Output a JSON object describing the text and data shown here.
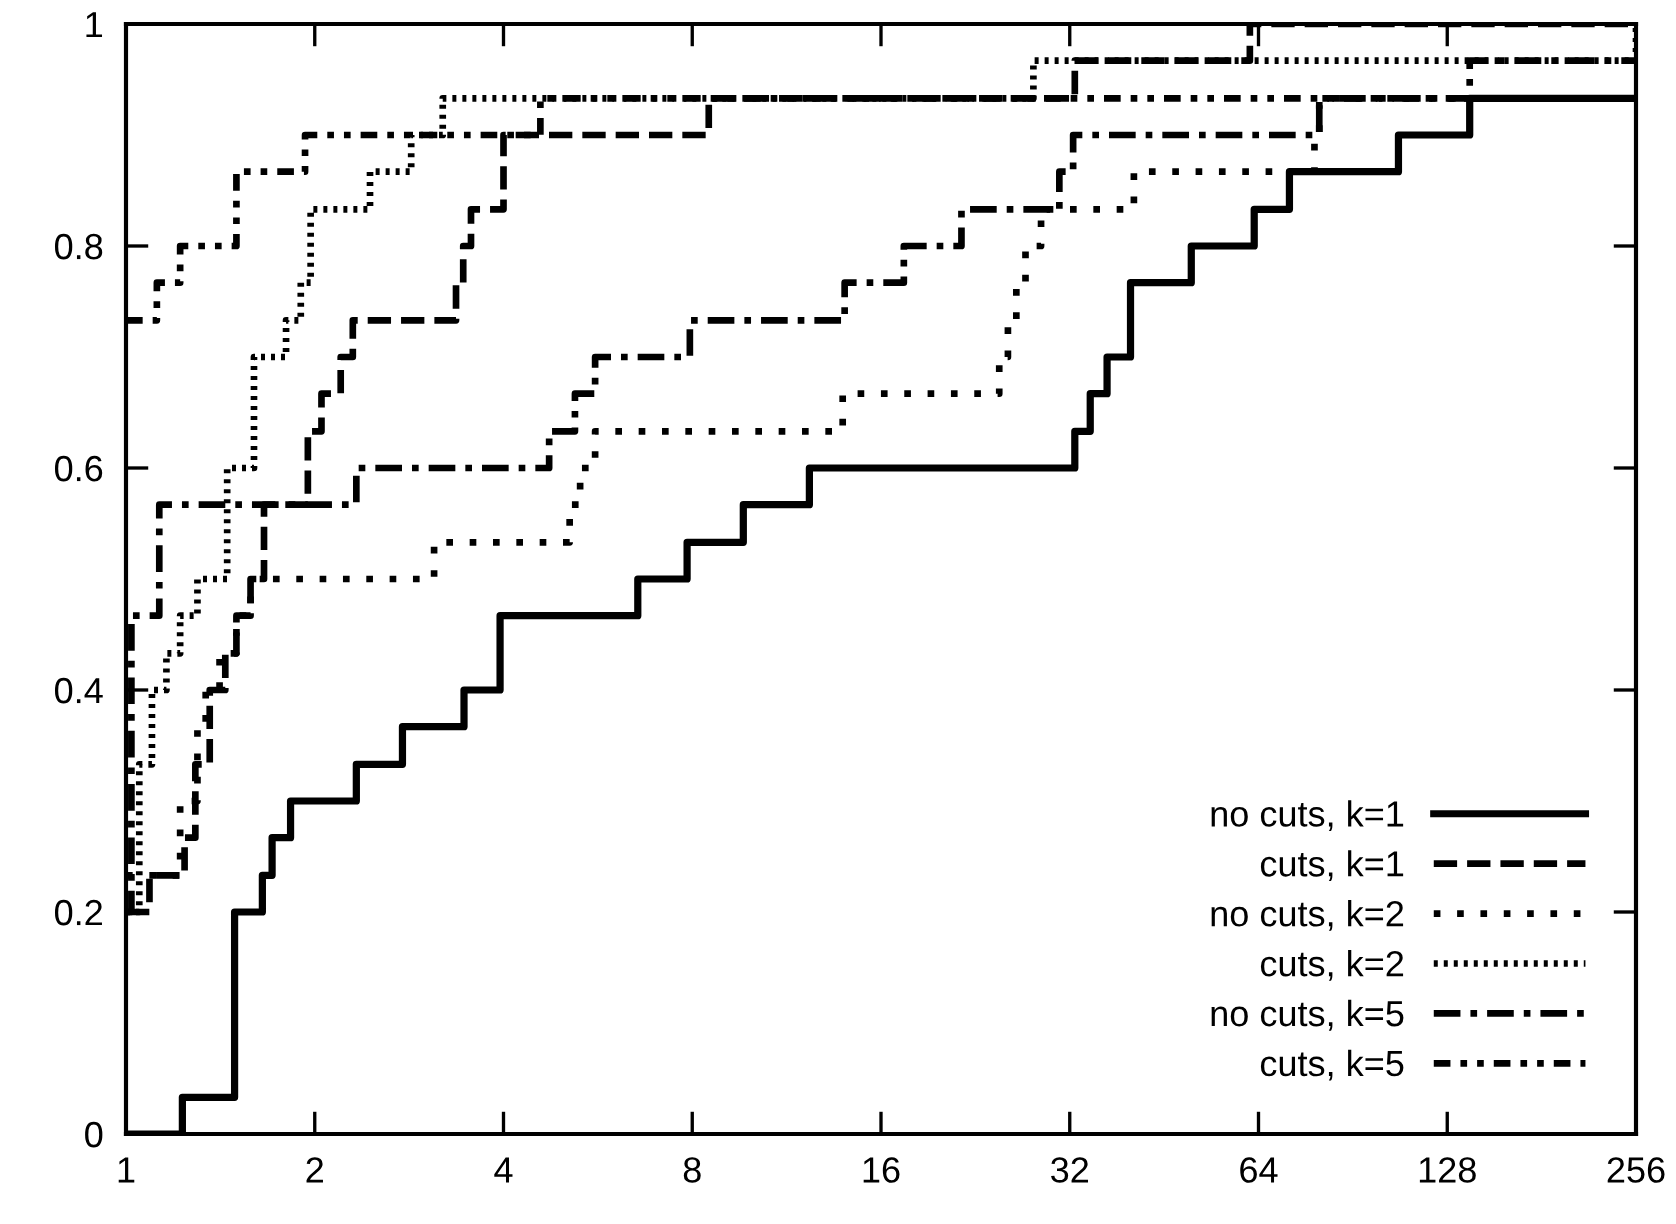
{
  "chart_data": {
    "type": "step",
    "xlim": [
      1,
      256
    ],
    "ylim": [
      0,
      1
    ],
    "log": "x",
    "xticks": [
      1,
      2,
      4,
      8,
      16,
      32,
      64,
      128,
      256
    ],
    "yticks": [
      0,
      0.2,
      0.4,
      0.6,
      0.8,
      1
    ],
    "grid": false,
    "legend": "bottom right",
    "series": [
      {
        "name": "no cuts, k=1",
        "color": "#000000",
        "line_style": "solid",
        "x": [
          1,
          1.23,
          1.49,
          1.65,
          1.71,
          1.83,
          2.33,
          2.76,
          3.46,
          3.95,
          6.55,
          7.85,
          9.65,
          12.3,
          32.6,
          34.5,
          36.7,
          40,
          50,
          63,
          71.7,
          107,
          139,
          256
        ],
        "values": [
          0,
          0.033,
          0.2,
          0.233,
          0.267,
          0.3,
          0.333,
          0.367,
          0.4,
          0.467,
          0.5,
          0.533,
          0.567,
          0.6,
          0.633,
          0.667,
          0.7,
          0.767,
          0.8,
          0.833,
          0.867,
          0.9,
          0.933,
          0.933
        ]
      },
      {
        "name": "cuts, k=1",
        "color": "#000000",
        "line_style": "dashed",
        "x": [
          1,
          1.09,
          1.24,
          1.29,
          1.36,
          1.44,
          1.5,
          1.58,
          1.66,
          1.95,
          2.05,
          2.2,
          2.3,
          3.36,
          3.45,
          3.55,
          4.0,
          8.5,
          32.6,
          62,
          256
        ],
        "values": [
          0.2,
          0.233,
          0.267,
          0.333,
          0.4,
          0.433,
          0.467,
          0.5,
          0.567,
          0.633,
          0.667,
          0.7,
          0.733,
          0.767,
          0.8,
          0.833,
          0.9,
          0.933,
          0.967,
          1,
          1
        ]
      },
      {
        "name": "no cuts, k=2",
        "color": "#000000",
        "line_style": "dotted",
        "x": [
          1,
          1.22,
          1.3,
          1.34,
          1.41,
          1.5,
          1.58,
          3.1,
          5.1,
          5.3,
          5.6,
          13.9,
          24.7,
          25.5,
          26.3,
          27.2,
          28.8,
          40.5,
          78.6,
          80,
          92,
          256
        ],
        "values": [
          0.233,
          0.3,
          0.367,
          0.4,
          0.433,
          0.467,
          0.5,
          0.533,
          0.567,
          0.6,
          0.633,
          0.667,
          0.7,
          0.733,
          0.767,
          0.8,
          0.833,
          0.867,
          0.9,
          0.933,
          0.933,
          0.933
        ]
      },
      {
        "name": "cuts, k=2",
        "color": "#000000",
        "line_style": "densely dotted",
        "x": [
          1,
          1.05,
          1.1,
          1.16,
          1.22,
          1.3,
          1.45,
          1.6,
          1.8,
          1.9,
          1.97,
          2.45,
          2.85,
          3.2,
          28,
          256
        ],
        "values": [
          0.2,
          0.333,
          0.4,
          0.433,
          0.467,
          0.5,
          0.6,
          0.7,
          0.733,
          0.767,
          0.833,
          0.867,
          0.9,
          0.933,
          0.967,
          1
        ]
      },
      {
        "name": "no cuts, k=5",
        "color": "#000000",
        "line_style": "dashdot",
        "x": [
          1,
          1.02,
          1.13,
          2.33,
          4.73,
          5.2,
          5.6,
          7.93,
          14,
          17.4,
          21.5,
          30.8,
          32.4,
          80,
          94.6,
          139,
          256
        ],
        "values": [
          0.2,
          0.467,
          0.567,
          0.6,
          0.633,
          0.667,
          0.7,
          0.733,
          0.767,
          0.8,
          0.833,
          0.867,
          0.9,
          0.933,
          0.933,
          0.967,
          0.967
        ]
      },
      {
        "name": "cuts, k=5",
        "color": "#000000",
        "line_style": "dashdotdotted",
        "x": [
          1,
          1.12,
          1.22,
          1.5,
          1.93,
          4.58,
          256
        ],
        "values": [
          0.733,
          0.767,
          0.8,
          0.867,
          0.9,
          0.933,
          0.933
        ]
      }
    ]
  }
}
